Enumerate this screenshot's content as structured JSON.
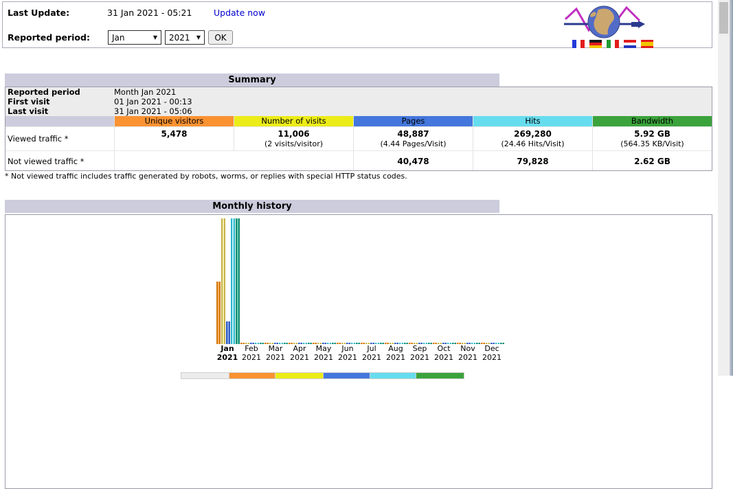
{
  "topbar": {
    "last_update_label": "Last Update:",
    "last_update_value": "31 Jan 2021 - 05:21",
    "update_now_link": "Update now",
    "reported_period_label": "Reported period:",
    "month_selected": "Jan",
    "year_selected": "2021",
    "ok_button": "OK",
    "flags": [
      "france",
      "germany",
      "italy",
      "netherlands",
      "spain"
    ]
  },
  "summary": {
    "title": "Summary",
    "info_rows": [
      {
        "label": "Reported period",
        "value": "Month Jan 2021"
      },
      {
        "label": "First visit",
        "value": "01 Jan 2021 - 00:13"
      },
      {
        "label": "Last visit",
        "value": "31 Jan 2021 - 05:06"
      }
    ],
    "columns": [
      {
        "label": "Unique visitors",
        "color": "#fa9232"
      },
      {
        "label": "Number of visits",
        "color": "#ecec18"
      },
      {
        "label": "Pages",
        "color": "#4477dd"
      },
      {
        "label": "Hits",
        "color": "#66ddee"
      },
      {
        "label": "Bandwidth",
        "color": "#3ba33b"
      }
    ],
    "viewed_row": {
      "label": "Viewed traffic *",
      "unique": "5,478",
      "visits": "11,006",
      "visits_sub": "(2 visits/visitor)",
      "pages": "48,887",
      "pages_sub": "(4.44 Pages/Visit)",
      "hits": "269,280",
      "hits_sub": "(24.46 Hits/Visit)",
      "bandwidth": "5.92 GB",
      "bandwidth_sub": "(564.35 KB/Visit)"
    },
    "not_viewed_row": {
      "label": "Not viewed traffic *",
      "pages": "40,478",
      "hits": "79,828",
      "bandwidth": "2.62 GB"
    },
    "footnote": "* Not viewed traffic includes traffic generated by robots, worms, or replies with special HTTP status codes."
  },
  "monthly": {
    "title": "Monthly history",
    "chart_data": {
      "type": "bar",
      "title": "Monthly history",
      "categories": [
        "Jan 2021",
        "Feb 2021",
        "Mar 2021",
        "Apr 2021",
        "May 2021",
        "Jun 2021",
        "Jul 2021",
        "Aug 2021",
        "Sep 2021",
        "Oct 2021",
        "Nov 2021",
        "Dec 2021"
      ],
      "bold_category": "Jan 2021",
      "legend_position": "none",
      "grid": false,
      "series": [
        {
          "name": "Unique visitors",
          "values": [
            5478,
            0,
            0,
            0,
            0,
            0,
            0,
            0,
            0,
            0,
            0,
            0
          ],
          "color_dark": "#d2770f",
          "color_light": "#ffb35e",
          "color": "#f08a28"
        },
        {
          "name": "Number of visits",
          "values": [
            11006,
            0,
            0,
            0,
            0,
            0,
            0,
            0,
            0,
            0,
            0,
            0
          ],
          "color_dark": "#c4b34a",
          "color_light": "#f4eeae",
          "color": "#ddcf70"
        },
        {
          "name": "Pages",
          "values": [
            48887,
            0,
            0,
            0,
            0,
            0,
            0,
            0,
            0,
            0,
            0,
            0
          ],
          "color_dark": "#2f5bbe",
          "color_light": "#82a2e8",
          "color": "#4477dd"
        },
        {
          "name": "Hits",
          "values": [
            269280,
            0,
            0,
            0,
            0,
            0,
            0,
            0,
            0,
            0,
            0,
            0
          ],
          "color_dark": "#2ab6cc",
          "color_light": "#bdf2f9",
          "color": "#66ddee"
        },
        {
          "name": "Bandwidth (GB)",
          "values": [
            5.92,
            0,
            0,
            0,
            0,
            0,
            0,
            0,
            0,
            0,
            0,
            0
          ],
          "color_dark": "#168a72",
          "color_light": "#63c7ae",
          "color": "#2ea495"
        }
      ],
      "unit_scaling_groups": [
        [
          0,
          1
        ],
        [
          2,
          3
        ],
        [
          4
        ]
      ]
    }
  }
}
